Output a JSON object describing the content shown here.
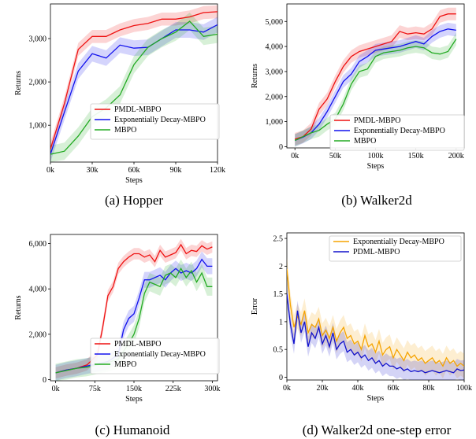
{
  "chart_data": [
    {
      "id": "hopper",
      "type": "line",
      "caption": "(a)  Hopper",
      "xlabel": "Steps",
      "ylabel": "Returns",
      "x_ticks": [
        "0k",
        "30k",
        "60k",
        "90k",
        "120k"
      ],
      "y_ticks": [
        "1,000",
        "2,000",
        "3,000"
      ],
      "xlim": [
        0,
        120
      ],
      "ylim": [
        150,
        3800
      ],
      "xtick_vals": [
        0,
        30,
        60,
        90,
        120
      ],
      "ytick_vals": [
        1000,
        2000,
        3000
      ],
      "legend_position": "bottom-right",
      "series": [
        {
          "name": "PMDL-MBPO",
          "color": "#ee1111",
          "x": [
            0,
            10,
            20,
            30,
            40,
            50,
            60,
            70,
            80,
            90,
            100,
            110,
            120
          ],
          "y": [
            450,
            1500,
            2750,
            3050,
            3050,
            3200,
            3300,
            3350,
            3450,
            3450,
            3500,
            3600,
            3620
          ],
          "band": 150
        },
        {
          "name": "Exponentially Decay-MBPO",
          "color": "#1111ee",
          "x": [
            0,
            10,
            20,
            30,
            40,
            50,
            60,
            70,
            80,
            90,
            100,
            110,
            120
          ],
          "y": [
            330,
            1300,
            2250,
            2650,
            2550,
            2850,
            2780,
            2800,
            3000,
            3200,
            3200,
            3150,
            3320
          ],
          "band": 180
        },
        {
          "name": "MBPO",
          "color": "#22aa22",
          "x": [
            0,
            10,
            20,
            30,
            40,
            50,
            60,
            70,
            80,
            90,
            100,
            110,
            120
          ],
          "y": [
            330,
            400,
            750,
            1200,
            1400,
            1700,
            2400,
            2800,
            3000,
            3150,
            3400,
            3050,
            3100
          ],
          "band": 200
        }
      ]
    },
    {
      "id": "walker2d",
      "type": "line",
      "caption": "(b)  Walker2d",
      "xlabel": "Steps",
      "ylabel": "Returns",
      "x_ticks": [
        "0k",
        "50k",
        "100k",
        "150k",
        "200k"
      ],
      "y_ticks": [
        "0",
        "1,000",
        "2,000",
        "3,000",
        "4,000",
        "5,000"
      ],
      "xlim": [
        -10,
        210
      ],
      "ylim": [
        -50,
        5700
      ],
      "xtick_vals": [
        0,
        50,
        100,
        150,
        200
      ],
      "ytick_vals": [
        0,
        1000,
        2000,
        3000,
        4000,
        5000
      ],
      "legend_position": "bottom-right",
      "series": [
        {
          "name": "PMDL-MBPO",
          "color": "#ee1111",
          "x": [
            0,
            10,
            20,
            30,
            40,
            50,
            60,
            70,
            80,
            90,
            100,
            110,
            120,
            130,
            140,
            150,
            160,
            170,
            180,
            190,
            200
          ],
          "y": [
            300,
            400,
            700,
            1500,
            1900,
            2600,
            3200,
            3600,
            3800,
            3900,
            4000,
            4100,
            4200,
            4600,
            4500,
            4550,
            4500,
            4700,
            5200,
            5300,
            5300
          ],
          "band": 250
        },
        {
          "name": "Exponentially Decay-MBPO",
          "color": "#1111ee",
          "x": [
            0,
            10,
            20,
            30,
            40,
            50,
            60,
            70,
            80,
            90,
            100,
            110,
            120,
            130,
            140,
            150,
            160,
            170,
            180,
            190,
            200
          ],
          "y": [
            250,
            380,
            550,
            900,
            1400,
            2000,
            2600,
            2900,
            3400,
            3600,
            3850,
            3900,
            3950,
            4000,
            4100,
            4200,
            4100,
            4400,
            4600,
            4700,
            4650
          ],
          "band": 250
        },
        {
          "name": "MBPO",
          "color": "#22aa22",
          "x": [
            0,
            10,
            20,
            30,
            40,
            50,
            60,
            70,
            80,
            90,
            100,
            110,
            120,
            130,
            140,
            150,
            160,
            170,
            180,
            190,
            200
          ],
          "y": [
            250,
            400,
            550,
            650,
            900,
            1100,
            1700,
            2500,
            3000,
            3100,
            3600,
            3750,
            3800,
            3850,
            3950,
            4000,
            3950,
            3750,
            3700,
            3800,
            4300
          ],
          "band": 250
        }
      ]
    },
    {
      "id": "humanoid",
      "type": "line",
      "caption": "(c)  Humanoid",
      "xlabel": "Steps",
      "ylabel": "Returns",
      "x_ticks": [
        "0k",
        "75k",
        "150k",
        "225k",
        "300k"
      ],
      "y_ticks": [
        "0",
        "2,000",
        "4,000",
        "6,000"
      ],
      "xlim": [
        -10,
        310
      ],
      "ylim": [
        -50,
        6400
      ],
      "xtick_vals": [
        0,
        75,
        150,
        225,
        300
      ],
      "ytick_vals": [
        0,
        2000,
        4000,
        6000
      ],
      "legend_position": "bottom-right",
      "series": [
        {
          "name": "PMDL-MBPO",
          "color": "#ee1111",
          "x": [
            0,
            20,
            40,
            60,
            80,
            90,
            100,
            110,
            120,
            130,
            140,
            150,
            160,
            170,
            180,
            190,
            200,
            210,
            220,
            230,
            240,
            250,
            260,
            270,
            280,
            290,
            300
          ],
          "y": [
            300,
            420,
            500,
            650,
            1100,
            2300,
            3700,
            4100,
            4900,
            5200,
            5400,
            5550,
            5550,
            5400,
            5500,
            5200,
            5700,
            5400,
            5500,
            5600,
            5950,
            5550,
            5700,
            5650,
            5900,
            5750,
            5850
          ],
          "band": 250
        },
        {
          "name": "Exponentially Decay-MBPO",
          "color": "#1111ee",
          "x": [
            0,
            20,
            40,
            60,
            80,
            100,
            120,
            130,
            140,
            150,
            160,
            170,
            180,
            190,
            200,
            210,
            220,
            230,
            240,
            250,
            260,
            270,
            280,
            290,
            300
          ],
          "y": [
            300,
            420,
            500,
            600,
            700,
            800,
            1100,
            2200,
            2700,
            2900,
            3600,
            4400,
            4400,
            4500,
            4600,
            4400,
            4700,
            4900,
            4700,
            4800,
            4700,
            4900,
            5300,
            5000,
            5000
          ],
          "band": 350
        },
        {
          "name": "MBPO",
          "color": "#22aa22",
          "x": [
            0,
            20,
            40,
            60,
            80,
            100,
            120,
            140,
            150,
            160,
            170,
            180,
            190,
            200,
            210,
            220,
            230,
            240,
            250,
            260,
            270,
            280,
            290,
            300
          ],
          "y": [
            300,
            400,
            500,
            550,
            650,
            750,
            900,
            1600,
            2000,
            2700,
            3800,
            4300,
            4200,
            4100,
            4600,
            4700,
            4500,
            4900,
            4500,
            4800,
            4300,
            4700,
            4100,
            4100
          ],
          "band": 400
        }
      ]
    },
    {
      "id": "walker2d_error",
      "type": "line",
      "caption": "(d)  Walker2d one-step error",
      "xlabel": "Steps",
      "ylabel": "Error",
      "x_ticks": [
        "0k",
        "20k",
        "40k",
        "60k",
        "80k",
        "100k"
      ],
      "y_ticks": [
        "0",
        "0.5",
        "1",
        "1.5",
        "2",
        "2.5"
      ],
      "xlim": [
        0,
        100
      ],
      "ylim": [
        -0.05,
        2.6
      ],
      "xtick_vals": [
        0,
        20,
        40,
        60,
        80,
        100
      ],
      "ytick_vals": [
        0,
        0.5,
        1,
        1.5,
        2,
        2.5
      ],
      "legend_position": "top-right",
      "series": [
        {
          "name": "Exponentially Decay-MBPO",
          "color": "#f5a300",
          "x": [
            0,
            2,
            4,
            6,
            8,
            10,
            12,
            14,
            16,
            18,
            20,
            22,
            24,
            26,
            28,
            30,
            32,
            34,
            36,
            38,
            40,
            42,
            44,
            46,
            48,
            50,
            52,
            54,
            56,
            58,
            60,
            62,
            64,
            66,
            68,
            70,
            72,
            74,
            76,
            78,
            80,
            82,
            84,
            86,
            88,
            90,
            92,
            94,
            96,
            98,
            100
          ],
          "y": [
            1.95,
            1.3,
            0.9,
            1.1,
            0.95,
            1.2,
            0.8,
            0.95,
            0.9,
            1.05,
            0.75,
            0.85,
            0.7,
            0.9,
            0.65,
            0.8,
            0.9,
            0.7,
            0.75,
            0.6,
            0.65,
            0.5,
            0.75,
            0.55,
            0.6,
            0.45,
            0.65,
            0.4,
            0.5,
            0.55,
            0.35,
            0.5,
            0.4,
            0.3,
            0.45,
            0.35,
            0.4,
            0.3,
            0.35,
            0.25,
            0.3,
            0.35,
            0.25,
            0.3,
            0.2,
            0.35,
            0.25,
            0.3,
            0.2,
            0.25,
            0.2
          ],
          "band": 0.22
        },
        {
          "name": "PDML-MBPO",
          "color": "#1111cc",
          "x": [
            0,
            2,
            4,
            6,
            8,
            10,
            12,
            14,
            16,
            18,
            20,
            22,
            24,
            26,
            28,
            30,
            32,
            34,
            36,
            38,
            40,
            42,
            44,
            46,
            48,
            50,
            52,
            54,
            56,
            58,
            60,
            62,
            64,
            66,
            68,
            70,
            72,
            74,
            76,
            78,
            80,
            82,
            84,
            86,
            88,
            90,
            92,
            94,
            96,
            98,
            100
          ],
          "y": [
            1.5,
            0.95,
            0.6,
            1.2,
            0.8,
            1.0,
            0.55,
            0.8,
            0.7,
            0.9,
            0.6,
            0.75,
            0.55,
            0.8,
            0.5,
            0.6,
            0.65,
            0.45,
            0.5,
            0.4,
            0.45,
            0.35,
            0.4,
            0.3,
            0.35,
            0.25,
            0.3,
            0.2,
            0.25,
            0.2,
            0.2,
            0.15,
            0.18,
            0.12,
            0.15,
            0.1,
            0.12,
            0.1,
            0.12,
            0.08,
            0.1,
            0.12,
            0.1,
            0.08,
            0.1,
            0.12,
            0.1,
            0.08,
            0.15,
            0.12,
            0.13
          ],
          "band": 0.18
        }
      ]
    }
  ]
}
